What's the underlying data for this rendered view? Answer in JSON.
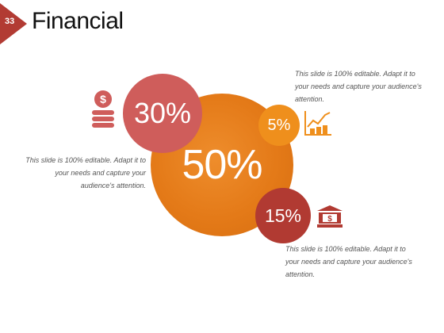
{
  "slide": {
    "number": "33",
    "title": "Financial"
  },
  "circles": {
    "center": "50%",
    "top_left": "30%",
    "top_right": "5%",
    "bottom_right": "15%"
  },
  "notes": {
    "left": "This slide is 100% editable. Adapt it to your needs and capture your audience's attention.",
    "top_right": "This slide is 100% editable. Adapt it to your needs and capture your audience's attention.",
    "bottom_right": "This slide is 100% editable. Adapt it to your needs and capture your audience's attention."
  },
  "icons": {
    "coins": "coins-icon",
    "chart": "growth-chart-icon",
    "bank": "bank-dollar-icon"
  },
  "colors": {
    "badge": "#b23b33",
    "circle_30": "#cf5d5b",
    "circle_50": "#e47a18",
    "circle_5": "#ef8f1c",
    "circle_15": "#b13a32"
  }
}
